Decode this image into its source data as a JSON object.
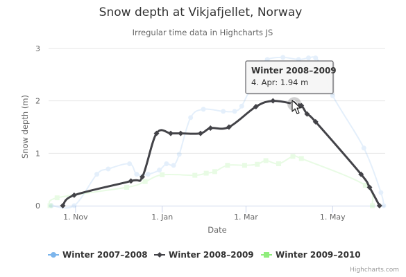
{
  "chart_data": {
    "type": "line",
    "title": "Snow depth at Vikjafjellet, Norway",
    "subtitle": "Irregular time data in Highcharts JS",
    "xlabel": "Date",
    "ylabel": "Snow depth (m)",
    "x_type": "datetime",
    "xlim": [
      "1970-10-13",
      "1971-06-07"
    ],
    "ylim": [
      0,
      3
    ],
    "y_ticks": [
      0,
      1,
      2,
      3
    ],
    "x_ticks": [
      {
        "date": "1970-11-01",
        "label": "1. Nov"
      },
      {
        "date": "1971-01-01",
        "label": "1. Jan"
      },
      {
        "date": "1971-03-01",
        "label": "1. Mar"
      },
      {
        "date": "1971-05-01",
        "label": "1. May"
      }
    ],
    "grid": true,
    "legend": "bottom",
    "series": [
      {
        "name": "Winter 2007-2008",
        "color": "#7cb5ec",
        "marker": "circle",
        "faded": true,
        "points": [
          [
            "1970-10-15",
            0
          ],
          [
            "1970-10-31",
            0
          ],
          [
            "1970-11-16",
            0.6
          ],
          [
            "1970-11-24",
            0.7
          ],
          [
            "1970-12-09",
            0.8
          ],
          [
            "1970-12-14",
            0.6
          ],
          [
            "1970-12-22",
            0.6
          ],
          [
            "1970-12-30",
            0.68
          ],
          [
            "1971-01-04",
            0.8
          ],
          [
            "1971-01-09",
            0.77
          ],
          [
            "1971-01-13",
            0.98
          ],
          [
            "1971-01-21",
            1.68
          ],
          [
            "1971-01-30",
            1.84
          ],
          [
            "1971-02-13",
            1.8
          ],
          [
            "1971-02-21",
            1.8
          ],
          [
            "1971-02-26",
            1.9
          ],
          [
            "1971-03-05",
            2.3
          ],
          [
            "1971-03-10",
            2.6
          ],
          [
            "1971-03-16",
            2.79
          ],
          [
            "1971-03-27",
            2.83
          ],
          [
            "1971-04-07",
            2.79
          ],
          [
            "1971-04-14",
            2.82
          ],
          [
            "1971-04-19",
            2.82
          ],
          [
            "1971-04-25",
            2.59
          ],
          [
            "1971-05-01",
            2.1
          ],
          [
            "1971-05-23",
            1.1
          ],
          [
            "1971-06-04",
            0.25
          ],
          [
            "1971-06-06",
            0
          ]
        ]
      },
      {
        "name": "Winter 2008-2009",
        "color": "#434348",
        "marker": "diamond",
        "faded": false,
        "points": [
          [
            "1970-10-23",
            0
          ],
          [
            "1970-10-31",
            0.2
          ],
          [
            "1970-12-10",
            0.47
          ],
          [
            "1970-12-18",
            0.55
          ],
          [
            "1970-12-28",
            1.38
          ],
          [
            "1971-01-07",
            1.38
          ],
          [
            "1971-01-14",
            1.38
          ],
          [
            "1971-01-28",
            1.38
          ],
          [
            "1971-02-04",
            1.48
          ],
          [
            "1971-02-17",
            1.5
          ],
          [
            "1971-03-08",
            1.89
          ],
          [
            "1971-03-20",
            2.0
          ],
          [
            "1971-04-04",
            1.94
          ],
          [
            "1971-04-09",
            1.91
          ],
          [
            "1971-04-13",
            1.75
          ],
          [
            "1971-04-19",
            1.6
          ],
          [
            "1971-05-21",
            0.6
          ],
          [
            "1971-05-27",
            0.35
          ],
          [
            "1971-06-03",
            0
          ]
        ]
      },
      {
        "name": "Winter 2009-2010",
        "color": "#90ed7d",
        "marker": "square",
        "faded": true,
        "points": [
          [
            "1970-10-14",
            0
          ],
          [
            "1970-10-19",
            0.15
          ],
          [
            "1970-12-07",
            0.35
          ],
          [
            "1970-12-20",
            0.46
          ],
          [
            "1971-01-01",
            0.59
          ],
          [
            "1971-01-24",
            0.58
          ],
          [
            "1971-02-01",
            0.62
          ],
          [
            "1971-02-07",
            0.65
          ],
          [
            "1971-02-16",
            0.77
          ],
          [
            "1971-02-28",
            0.77
          ],
          [
            "1971-03-09",
            0.79
          ],
          [
            "1971-03-15",
            0.86
          ],
          [
            "1971-03-24",
            0.8
          ],
          [
            "1971-04-03",
            0.94
          ],
          [
            "1971-04-09",
            0.9
          ],
          [
            "1971-05-24",
            0.39
          ],
          [
            "1971-05-29",
            0
          ]
        ]
      }
    ],
    "tooltip": {
      "series": "Winter 2008-2009",
      "point": "1971-04-04",
      "title": "Winter 2008–2009",
      "body": "4. Apr: 1.94 m"
    }
  },
  "legend_items": [
    "Winter 2007–2008",
    "Winter 2008–2009",
    "Winter 2009–2010"
  ],
  "credits": "Highcharts.com"
}
